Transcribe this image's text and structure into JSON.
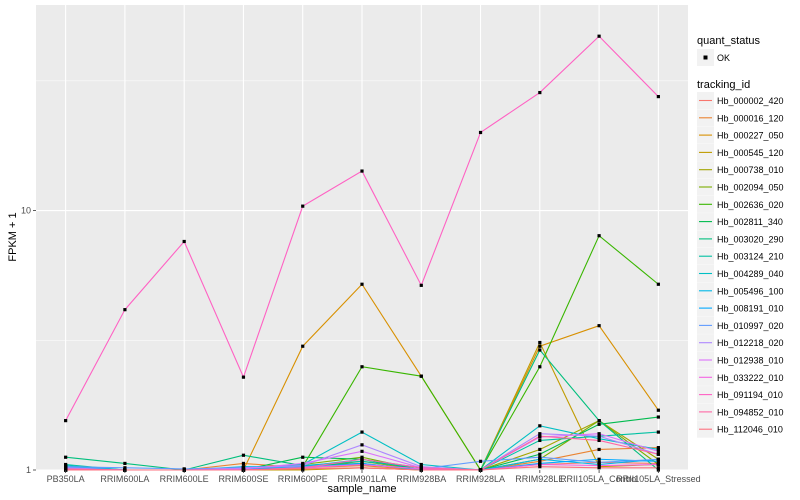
{
  "chart_data": {
    "type": "line",
    "xlabel": "sample_name",
    "ylabel": "FPKM + 1",
    "y_scale": "log10",
    "ylim": [
      1,
      62
    ],
    "y_ticks": [
      {
        "value": 1,
        "label": "1"
      },
      {
        "value": 10,
        "label": "10"
      }
    ],
    "grid": true,
    "legend_position": "right",
    "categories": [
      "PB350LA",
      "RRIM600LA",
      "RRIM600LE",
      "RRIM600SE",
      "RRIM600PE",
      "RRIM901LA",
      "RRIM928BA",
      "RRIM928LA",
      "RRIM928LE",
      "RRII105LA_Control",
      "RRII105LA_Stressed"
    ],
    "quant_status_legend": {
      "title": "quant_status",
      "items": [
        "OK"
      ]
    },
    "series_legend_title": "tracking_id",
    "series": [
      {
        "name": "Hb_000002_420",
        "color": "#F8766D",
        "values": [
          1.01,
          1.0,
          1.0,
          1.02,
          1.01,
          1.02,
          1.0,
          1.0,
          1.05,
          1.07,
          1.06
        ]
      },
      {
        "name": "Hb_000016_120",
        "color": "#EA8331",
        "values": [
          1.02,
          1.0,
          1.0,
          1.06,
          1.02,
          1.04,
          1.0,
          1.0,
          1.08,
          1.2,
          1.22
        ]
      },
      {
        "name": "Hb_000227_050",
        "color": "#D89000",
        "values": [
          1.0,
          1.0,
          1.0,
          1.0,
          3.0,
          5.2,
          2.3,
          1.0,
          3.0,
          3.6,
          1.7
        ]
      },
      {
        "name": "Hb_000545_120",
        "color": "#C09B00",
        "values": [
          1.0,
          1.0,
          1.0,
          1.0,
          1.0,
          1.02,
          1.0,
          1.0,
          3.1,
          1.03,
          1.05
        ]
      },
      {
        "name": "Hb_000738_010",
        "color": "#A3A500",
        "values": [
          1.0,
          1.0,
          1.0,
          1.0,
          1.02,
          1.08,
          1.0,
          1.0,
          1.2,
          1.55,
          1.1
        ]
      },
      {
        "name": "Hb_002094_050",
        "color": "#7CAE00",
        "values": [
          1.0,
          1.0,
          1.0,
          1.0,
          1.05,
          1.12,
          1.0,
          1.0,
          1.1,
          1.55,
          1.05
        ]
      },
      {
        "name": "Hb_002636_020",
        "color": "#39B600",
        "values": [
          1.0,
          1.0,
          1.0,
          1.0,
          1.03,
          2.5,
          2.3,
          1.0,
          2.5,
          8.0,
          5.2
        ]
      },
      {
        "name": "Hb_002811_340",
        "color": "#00BB4E",
        "values": [
          1.0,
          1.0,
          1.0,
          1.0,
          1.12,
          1.1,
          1.0,
          1.0,
          1.15,
          1.5,
          1.6
        ]
      },
      {
        "name": "Hb_003020_290",
        "color": "#00BF7D",
        "values": [
          1.12,
          1.06,
          1.0,
          1.14,
          1.04,
          1.06,
          1.0,
          1.0,
          2.9,
          1.55,
          1.0
        ]
      },
      {
        "name": "Hb_003124_210",
        "color": "#00C1A3",
        "values": [
          1.05,
          1.0,
          1.0,
          1.0,
          1.04,
          1.08,
          1.02,
          1.0,
          1.3,
          1.35,
          1.4
        ]
      },
      {
        "name": "Hb_004289_040",
        "color": "#00BFC4",
        "values": [
          1.04,
          1.0,
          1.0,
          1.02,
          1.05,
          1.4,
          1.05,
          1.0,
          1.48,
          1.32,
          1.2
        ]
      },
      {
        "name": "Hb_005496_100",
        "color": "#00B8E7",
        "values": [
          1.03,
          1.0,
          1.0,
          1.03,
          1.03,
          1.1,
          1.02,
          1.0,
          1.1,
          1.05,
          1.1
        ]
      },
      {
        "name": "Hb_008191_010",
        "color": "#00A9FF",
        "values": [
          1.02,
          1.0,
          1.0,
          1.01,
          1.02,
          1.06,
          1.0,
          1.0,
          1.06,
          1.1,
          1.08
        ]
      },
      {
        "name": "Hb_010997_020",
        "color": "#619CFF",
        "values": [
          1.03,
          1.02,
          1.01,
          1.02,
          1.03,
          1.05,
          1.01,
          1.08,
          1.12,
          1.07,
          1.1
        ]
      },
      {
        "name": "Hb_012218_020",
        "color": "#AE87FF",
        "values": [
          1.02,
          1.0,
          1.0,
          1.02,
          1.04,
          1.25,
          1.03,
          1.0,
          1.38,
          1.35,
          1.15
        ]
      },
      {
        "name": "Hb_012938_010",
        "color": "#DB72FB",
        "values": [
          1.01,
          1.0,
          1.0,
          1.01,
          1.06,
          1.18,
          1.02,
          1.0,
          1.34,
          1.38,
          1.18
        ]
      },
      {
        "name": "Hb_033222_010",
        "color": "#F564E3",
        "values": [
          1.01,
          1.0,
          1.0,
          1.0,
          1.02,
          1.05,
          1.01,
          1.0,
          1.05,
          1.04,
          1.05
        ]
      },
      {
        "name": "Hb_091194_010",
        "color": "#FF61C3",
        "values": [
          1.55,
          4.15,
          7.6,
          2.28,
          10.4,
          14.2,
          5.15,
          20.0,
          28.5,
          47.0,
          27.5
        ]
      },
      {
        "name": "Hb_094852_010",
        "color": "#FF67A4",
        "values": [
          1.01,
          1.0,
          1.0,
          1.0,
          1.02,
          1.1,
          1.02,
          1.0,
          1.35,
          1.3,
          1.15
        ]
      },
      {
        "name": "Hb_112046_010",
        "color": "#FC717F",
        "values": [
          1.0,
          1.0,
          1.0,
          1.0,
          1.01,
          1.02,
          1.0,
          1.0,
          1.03,
          1.02,
          1.02
        ]
      }
    ]
  }
}
